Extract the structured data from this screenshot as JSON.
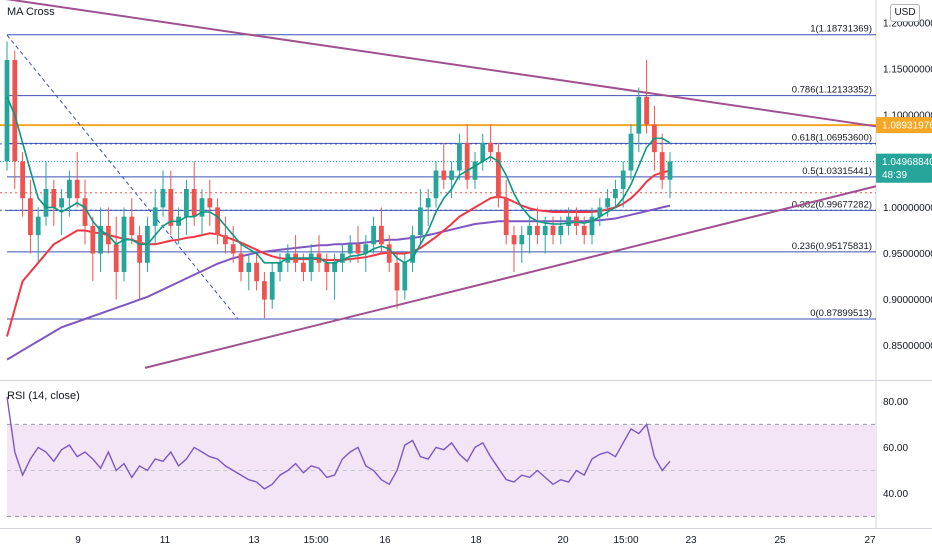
{
  "header": {
    "title": "MA Cross",
    "currency": "USD"
  },
  "rsi": {
    "title": "RSI (14, close)",
    "ticks": [
      "80.00",
      "60.00",
      "40.00"
    ]
  },
  "colors": {
    "up": "#26a69a",
    "down": "#ef5350",
    "fib": "#3f51b5",
    "trendline": "#a0518f",
    "orange": "#f5a623",
    "ma_fast": "#089981",
    "ma_mid": "#f23645",
    "ma_slow": "#7e57c2",
    "rsi_line": "#7e57c2",
    "rsi_band": "#f3e5f5"
  },
  "chart_data": {
    "type": "candlestick",
    "x_ticks": [
      "9",
      "11",
      "13",
      "15:00",
      "16",
      "18",
      "20",
      "15:00",
      "23",
      "25",
      "27"
    ],
    "y_ticks": [
      "1.20000000",
      "1.15000000",
      "1.10000000",
      "1.05000000",
      "1.00000000",
      "0.95000000",
      "0.90000000",
      "0.85000000"
    ],
    "ylim": [
      0.815,
      1.225
    ],
    "fib_levels": [
      {
        "label": "1(1.18731369)",
        "value": 1.18731369
      },
      {
        "label": "0.786(1.12133352)",
        "value": 1.12133352
      },
      {
        "label": "0.618(1.06953600)",
        "value": 1.069536
      },
      {
        "label": "0.5(1.03315441)",
        "value": 1.03315441
      },
      {
        "label": "0.382(0.99677282)",
        "value": 0.99677282
      },
      {
        "label": "0.236(0.95175831)",
        "value": 0.95175831
      },
      {
        "label": "0(0.87899513)",
        "value": 0.87899513
      }
    ],
    "price_labels": [
      {
        "text": "1.08931976",
        "value": 1.08931976,
        "color": "#f5a623"
      },
      {
        "text": "1.04968840",
        "value": 1.0496884,
        "color": "#26a69a"
      },
      {
        "text": "48:39",
        "value": 1.0355,
        "color": "#26a69a"
      }
    ],
    "candles": [
      [
        1.05,
        1.18,
        1.04,
        1.16
      ],
      [
        1.16,
        1.17,
        1.02,
        1.05
      ],
      [
        1.05,
        1.06,
        0.99,
        1.01
      ],
      [
        1.01,
        1.03,
        0.95,
        0.97
      ],
      [
        0.97,
        1.0,
        0.94,
        0.99
      ],
      [
        0.99,
        1.05,
        0.98,
        1.02
      ],
      [
        1.02,
        1.03,
        0.98,
        1.0
      ],
      [
        1.0,
        1.02,
        0.97,
        1.01
      ],
      [
        1.01,
        1.04,
        0.99,
        1.03
      ],
      [
        1.03,
        1.06,
        1.0,
        1.01
      ],
      [
        1.01,
        1.03,
        0.96,
        0.98
      ],
      [
        0.98,
        0.99,
        0.92,
        0.95
      ],
      [
        0.95,
        1.0,
        0.93,
        0.98
      ],
      [
        0.98,
        1.0,
        0.95,
        0.96
      ],
      [
        0.96,
        0.99,
        0.9,
        0.93
      ],
      [
        0.93,
        1.0,
        0.92,
        0.99
      ],
      [
        0.99,
        1.01,
        0.96,
        0.97
      ],
      [
        0.97,
        0.98,
        0.9,
        0.94
      ],
      [
        0.94,
        0.99,
        0.93,
        0.98
      ],
      [
        0.98,
        1.02,
        0.96,
        1.0
      ],
      [
        1.0,
        1.04,
        0.99,
        1.02
      ],
      [
        1.02,
        1.04,
        0.97,
        0.98
      ],
      [
        0.98,
        1.0,
        0.96,
        0.99
      ],
      [
        0.99,
        1.03,
        0.97,
        1.02
      ],
      [
        1.02,
        1.05,
        0.98,
        0.99
      ],
      [
        0.99,
        1.02,
        0.97,
        1.01
      ],
      [
        1.01,
        1.03,
        0.98,
        1.0
      ],
      [
        1.0,
        1.01,
        0.96,
        0.97
      ],
      [
        0.97,
        0.99,
        0.95,
        0.96
      ],
      [
        0.96,
        0.98,
        0.94,
        0.95
      ],
      [
        0.95,
        0.96,
        0.92,
        0.93
      ],
      [
        0.93,
        0.95,
        0.91,
        0.94
      ],
      [
        0.94,
        0.95,
        0.91,
        0.92
      ],
      [
        0.92,
        0.93,
        0.88,
        0.9
      ],
      [
        0.9,
        0.94,
        0.89,
        0.93
      ],
      [
        0.93,
        0.95,
        0.92,
        0.94
      ],
      [
        0.94,
        0.96,
        0.93,
        0.95
      ],
      [
        0.95,
        0.97,
        0.93,
        0.94
      ],
      [
        0.94,
        0.95,
        0.92,
        0.93
      ],
      [
        0.93,
        0.96,
        0.92,
        0.95
      ],
      [
        0.95,
        0.97,
        0.93,
        0.94
      ],
      [
        0.94,
        0.95,
        0.91,
        0.93
      ],
      [
        0.93,
        0.95,
        0.9,
        0.94
      ],
      [
        0.94,
        0.96,
        0.93,
        0.95
      ],
      [
        0.95,
        0.97,
        0.94,
        0.96
      ],
      [
        0.96,
        0.98,
        0.94,
        0.95
      ],
      [
        0.95,
        0.97,
        0.93,
        0.96
      ],
      [
        0.96,
        0.99,
        0.95,
        0.98
      ],
      [
        0.98,
        1.0,
        0.95,
        0.96
      ],
      [
        0.96,
        0.97,
        0.93,
        0.94
      ],
      [
        0.94,
        0.95,
        0.89,
        0.91
      ],
      [
        0.91,
        0.95,
        0.9,
        0.94
      ],
      [
        0.94,
        0.98,
        0.93,
        0.97
      ],
      [
        0.97,
        1.02,
        0.96,
        1.0
      ],
      [
        1.0,
        1.02,
        0.98,
        1.01
      ],
      [
        1.01,
        1.05,
        1.0,
        1.04
      ],
      [
        1.04,
        1.07,
        1.02,
        1.03
      ],
      [
        1.03,
        1.05,
        1.01,
        1.04
      ],
      [
        1.04,
        1.08,
        1.03,
        1.07
      ],
      [
        1.07,
        1.09,
        1.02,
        1.03
      ],
      [
        1.03,
        1.06,
        1.02,
        1.05
      ],
      [
        1.05,
        1.08,
        1.04,
        1.07
      ],
      [
        1.07,
        1.09,
        1.05,
        1.06
      ],
      [
        1.06,
        1.07,
        1.0,
        1.01
      ],
      [
        1.01,
        1.03,
        0.96,
        0.97
      ],
      [
        0.97,
        0.98,
        0.93,
        0.96
      ],
      [
        0.96,
        0.98,
        0.94,
        0.97
      ],
      [
        0.97,
        0.99,
        0.95,
        0.98
      ],
      [
        0.98,
        1.0,
        0.96,
        0.97
      ],
      [
        0.97,
        0.99,
        0.95,
        0.98
      ],
      [
        0.98,
        0.99,
        0.96,
        0.97
      ],
      [
        0.97,
        0.99,
        0.96,
        0.98
      ],
      [
        0.98,
        1.0,
        0.97,
        0.99
      ],
      [
        0.99,
        1.0,
        0.97,
        0.98
      ],
      [
        0.98,
        0.99,
        0.96,
        0.97
      ],
      [
        0.97,
        1.0,
        0.96,
        0.99
      ],
      [
        0.99,
        1.01,
        0.98,
        1.0
      ],
      [
        1.0,
        1.02,
        0.99,
        1.01
      ],
      [
        1.01,
        1.03,
        1.0,
        1.02
      ],
      [
        1.02,
        1.05,
        1.0,
        1.04
      ],
      [
        1.04,
        1.09,
        1.03,
        1.08
      ],
      [
        1.08,
        1.13,
        1.06,
        1.12
      ],
      [
        1.12,
        1.16,
        1.08,
        1.09
      ],
      [
        1.09,
        1.11,
        1.04,
        1.06
      ],
      [
        1.06,
        1.08,
        1.02,
        1.03
      ],
      [
        1.03,
        1.06,
        1.01,
        1.05
      ]
    ],
    "ma_fast": [
      1.12,
      1.1,
      1.07,
      1.04,
      1.01,
      1.0,
      1.0,
      0.995,
      1.0,
      1.005,
      1.0,
      0.985,
      0.975,
      0.97,
      0.96,
      0.965,
      0.965,
      0.96,
      0.96,
      0.97,
      0.98,
      0.985,
      0.985,
      0.99,
      0.99,
      0.995,
      0.995,
      0.99,
      0.98,
      0.97,
      0.96,
      0.955,
      0.95,
      0.94,
      0.94,
      0.94,
      0.945,
      0.945,
      0.945,
      0.945,
      0.945,
      0.94,
      0.94,
      0.943,
      0.947,
      0.948,
      0.95,
      0.955,
      0.958,
      0.955,
      0.945,
      0.94,
      0.945,
      0.96,
      0.975,
      0.995,
      1.01,
      1.02,
      1.035,
      1.04,
      1.045,
      1.05,
      1.055,
      1.05,
      1.035,
      1.015,
      1.0,
      0.99,
      0.985,
      0.983,
      0.982,
      0.982,
      0.983,
      0.984,
      0.983,
      0.985,
      0.99,
      0.995,
      1.0,
      1.01,
      1.025,
      1.045,
      1.065,
      1.075,
      1.075,
      1.07
    ],
    "ma_mid": [
      0.86,
      0.89,
      0.92,
      0.93,
      0.94,
      0.95,
      0.96,
      0.965,
      0.97,
      0.975,
      0.975,
      0.973,
      0.972,
      0.97,
      0.968,
      0.966,
      0.965,
      0.962,
      0.96,
      0.96,
      0.962,
      0.964,
      0.965,
      0.967,
      0.968,
      0.97,
      0.972,
      0.971,
      0.968,
      0.965,
      0.962,
      0.958,
      0.954,
      0.95,
      0.947,
      0.945,
      0.944,
      0.944,
      0.944,
      0.944,
      0.944,
      0.943,
      0.943,
      0.943,
      0.944,
      0.945,
      0.946,
      0.948,
      0.95,
      0.951,
      0.95,
      0.95,
      0.952,
      0.956,
      0.962,
      0.968,
      0.975,
      0.982,
      0.99,
      0.995,
      1.0,
      1.005,
      1.01,
      1.012,
      1.01,
      1.006,
      1.002,
      0.999,
      0.997,
      0.996,
      0.995,
      0.995,
      0.995,
      0.995,
      0.995,
      0.995,
      0.996,
      0.998,
      1.0,
      1.004,
      1.01,
      1.018,
      1.028,
      1.035,
      1.038,
      1.04
    ],
    "ma_slow": [
      0.835,
      0.84,
      0.845,
      0.85,
      0.855,
      0.86,
      0.865,
      0.87,
      0.873,
      0.876,
      0.879,
      0.882,
      0.885,
      0.888,
      0.891,
      0.894,
      0.897,
      0.9,
      0.903,
      0.907,
      0.911,
      0.915,
      0.919,
      0.923,
      0.927,
      0.931,
      0.935,
      0.939,
      0.942,
      0.945,
      0.947,
      0.949,
      0.951,
      0.952,
      0.953,
      0.954,
      0.955,
      0.956,
      0.957,
      0.958,
      0.959,
      0.959,
      0.96,
      0.96,
      0.961,
      0.961,
      0.962,
      0.963,
      0.964,
      0.965,
      0.965,
      0.966,
      0.967,
      0.968,
      0.97,
      0.972,
      0.974,
      0.976,
      0.978,
      0.98,
      0.982,
      0.983,
      0.984,
      0.985,
      0.985,
      0.985,
      0.985,
      0.985,
      0.985,
      0.985,
      0.985,
      0.985,
      0.985,
      0.985,
      0.985,
      0.986,
      0.986,
      0.987,
      0.988,
      0.99,
      0.992,
      0.994,
      0.996,
      0.998,
      1.0,
      1.002
    ],
    "rsi_values": [
      82,
      58,
      48,
      55,
      60,
      58,
      54,
      59,
      61,
      56,
      58,
      55,
      51,
      58,
      50,
      53,
      47,
      52,
      50,
      55,
      54,
      58,
      52,
      55,
      60,
      58,
      56,
      55,
      52,
      50,
      48,
      46,
      45,
      42,
      44,
      48,
      50,
      53,
      49,
      52,
      51,
      47,
      48,
      55,
      58,
      60,
      52,
      50,
      46,
      44,
      50,
      61,
      63,
      56,
      55,
      60,
      59,
      62,
      57,
      54,
      60,
      62,
      56,
      51,
      46,
      45,
      48,
      47,
      50,
      47,
      44,
      46,
      45,
      50,
      48,
      55,
      57,
      58,
      56,
      62,
      68,
      66,
      70,
      56,
      50,
      54
    ],
    "rsi_ylim": [
      25,
      88
    ],
    "rsi_band": [
      30,
      70
    ]
  }
}
